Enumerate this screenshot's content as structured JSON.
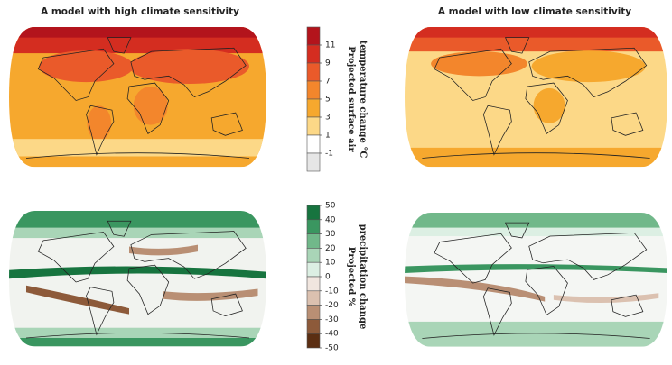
{
  "titles": [
    "A model with high climate sensitivity",
    "A model with low climate sensitivity"
  ],
  "temperature_legend": {
    "label_lines": [
      "Projected surface air",
      "temperature change °C"
    ],
    "ticks": [
      11,
      9,
      7,
      5,
      3,
      1,
      -1
    ],
    "colors": [
      "#b3141c",
      "#d42d20",
      "#ea5a2a",
      "#f3862c",
      "#f6a82e",
      "#fcd887",
      "#ffffff",
      "#e6e6e6"
    ]
  },
  "precipitation_legend": {
    "label_lines": [
      "Projected %",
      "precipitation change"
    ],
    "ticks": [
      50,
      40,
      30,
      20,
      10,
      0,
      -10,
      -20,
      -30,
      -40,
      -50
    ],
    "colors": [
      "#17743f",
      "#3a9660",
      "#71b88a",
      "#a9d5b7",
      "#dcefe3",
      "#f1e6df",
      "#dbc1b0",
      "#b98f74",
      "#8d5a3a",
      "#5b2e12"
    ]
  }
}
